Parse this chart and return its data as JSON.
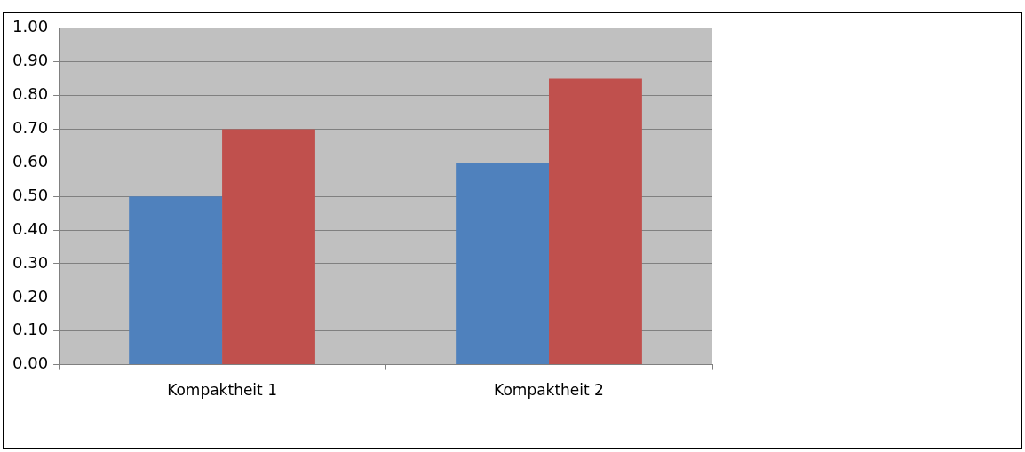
{
  "chart_data": {
    "type": "bar",
    "categories": [
      "Kompaktheit 1",
      "Kompaktheit 2"
    ],
    "series": [
      {
        "color": "#4f81bd",
        "values": [
          0.5,
          0.6
        ]
      },
      {
        "color": "#c0504d",
        "values": [
          0.7,
          0.85
        ]
      }
    ],
    "ylim": [
      0,
      1
    ],
    "yticks": [
      {
        "value": 0,
        "label": "0.00"
      },
      {
        "value": 0.1,
        "label": "0.10"
      },
      {
        "value": 0.2,
        "label": "0.20"
      },
      {
        "value": 0.3,
        "label": "0.30"
      },
      {
        "value": 0.4,
        "label": "0.40"
      },
      {
        "value": 0.5,
        "label": "0.50"
      },
      {
        "value": 0.6,
        "label": "0.60"
      },
      {
        "value": 0.7,
        "label": "0.70"
      },
      {
        "value": 0.8,
        "label": "0.80"
      },
      {
        "value": 0.9,
        "label": "0.90"
      },
      {
        "value": 1,
        "label": "1.00"
      }
    ],
    "grid": "y",
    "legend": false
  }
}
